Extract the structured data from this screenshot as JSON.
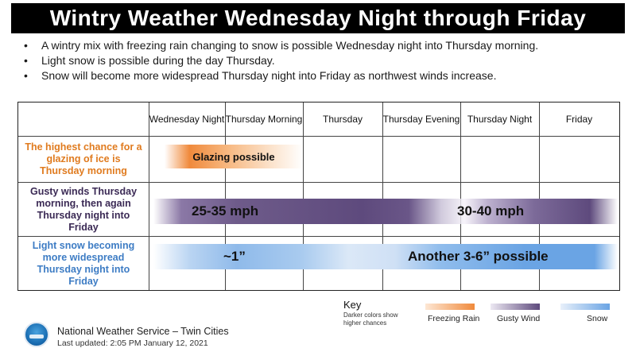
{
  "title": "Wintry Weather Wednesday Night through Friday",
  "bullets": [
    "A wintry mix with freezing rain changing to snow is possible Wednesday night into Thursday morning.",
    "Light snow is possible during the day Thursday.",
    "Snow will become more widespread Thursday night into Friday as northwest winds increase."
  ],
  "columns": [
    "Wednesday Night",
    "Thursday Morning",
    "Thursday",
    "Thursday Evening",
    "Thursday Night",
    "Friday"
  ],
  "rows": {
    "ice": {
      "label": "The highest chance for a glazing of ice is Thursday morning",
      "band_text": "Glazing possible"
    },
    "wind": {
      "label": "Gusty winds Thursday morning, then again Thursday night into Friday",
      "band_text_1": "25-35 mph",
      "band_text_2": "30-40 mph"
    },
    "snow": {
      "label": "Light snow becoming more widespread Thursday night into Friday",
      "band_text_1": "~1”",
      "band_text_2": "Another 3-6” possible"
    }
  },
  "key": {
    "title": "Key",
    "note": "Darker colors show higher chances",
    "items": [
      "Freezing Rain",
      "Gusty Wind",
      "Snow"
    ]
  },
  "footer": {
    "office": "National Weather Service – Twin Cities",
    "updated": "Last updated: 2:05 PM January 12, 2021"
  },
  "colors": {
    "freezing_rain": "#f08a3c",
    "gusty_wind": "#5e4a7d",
    "snow": "#6aa4e4"
  }
}
